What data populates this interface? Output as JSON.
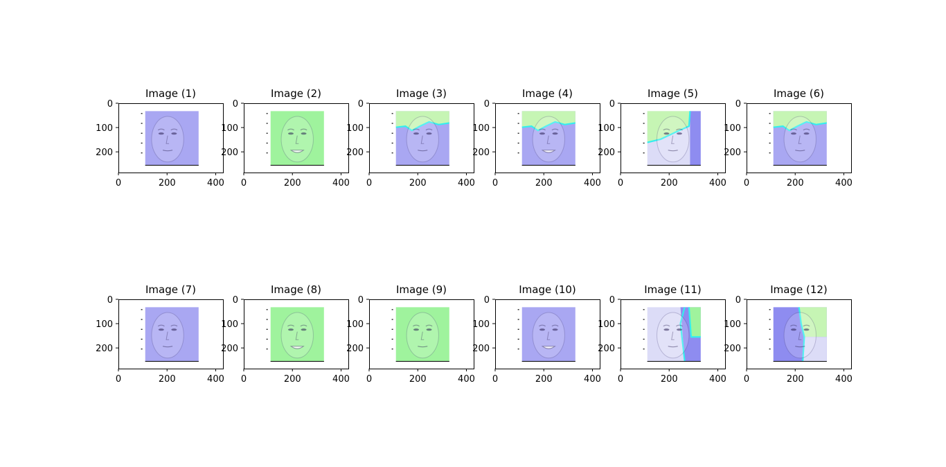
{
  "chart_data": [
    {
      "type": "image",
      "title": "Image (1)",
      "xticks": [
        0,
        200,
        400
      ],
      "yticks": [
        0,
        100,
        200
      ],
      "overlay": "blue",
      "subject": "face-left-turned"
    },
    {
      "type": "image",
      "title": "Image (2)",
      "xticks": [
        0,
        200,
        400
      ],
      "yticks": [
        0,
        100,
        200
      ],
      "overlay": "green",
      "subject": "face-smiling"
    },
    {
      "type": "image",
      "title": "Image (3)",
      "xticks": [
        0,
        200,
        400
      ],
      "yticks": [
        0,
        100,
        200
      ],
      "overlay": "blue-green-top",
      "subject": "face-frontal"
    },
    {
      "type": "image",
      "title": "Image (4)",
      "xticks": [
        0,
        200,
        400
      ],
      "yticks": [
        0,
        100,
        200
      ],
      "overlay": "blue-green-top",
      "subject": "face-smiling"
    },
    {
      "type": "image",
      "title": "Image (5)",
      "xticks": [
        0,
        200,
        400
      ],
      "yticks": [
        0,
        100,
        200
      ],
      "overlay": "white-green-blue",
      "subject": "face-right-turned"
    },
    {
      "type": "image",
      "title": "Image (6)",
      "xticks": [
        0,
        200,
        400
      ],
      "yticks": [
        0,
        100,
        200
      ],
      "overlay": "blue-green-top",
      "subject": "face-profile"
    },
    {
      "type": "image",
      "title": "Image (7)",
      "xticks": [
        0,
        200,
        400
      ],
      "yticks": [
        0,
        100,
        200
      ],
      "overlay": "blue",
      "subject": "face-left-turned"
    },
    {
      "type": "image",
      "title": "Image (8)",
      "xticks": [
        0,
        200,
        400
      ],
      "yticks": [
        0,
        100,
        200
      ],
      "overlay": "green",
      "subject": "face-smiling"
    },
    {
      "type": "image",
      "title": "Image (9)",
      "xticks": [
        0,
        200,
        400
      ],
      "yticks": [
        0,
        100,
        200
      ],
      "overlay": "green",
      "subject": "face-frontal"
    },
    {
      "type": "image",
      "title": "Image (10)",
      "xticks": [
        0,
        200,
        400
      ],
      "yticks": [
        0,
        100,
        200
      ],
      "overlay": "blue",
      "subject": "face-smiling"
    },
    {
      "type": "image",
      "title": "Image (11)",
      "xticks": [
        0,
        200,
        400
      ],
      "yticks": [
        0,
        100,
        200
      ],
      "overlay": "white-blue-green-right",
      "subject": "face-right-turned"
    },
    {
      "type": "image",
      "title": "Image (12)",
      "xticks": [
        0,
        200,
        400
      ],
      "yticks": [
        0,
        100,
        200
      ],
      "overlay": "blue-green-right",
      "subject": "face-profile"
    }
  ],
  "colors": {
    "blue": "#a9a7f2",
    "blue_dark": "#8e8cf0",
    "green": "#9ff39d",
    "green_light": "#c6f5b4",
    "white_blue": "#dcdcf7",
    "boundary": "#33eeee",
    "frame": "#000000"
  }
}
